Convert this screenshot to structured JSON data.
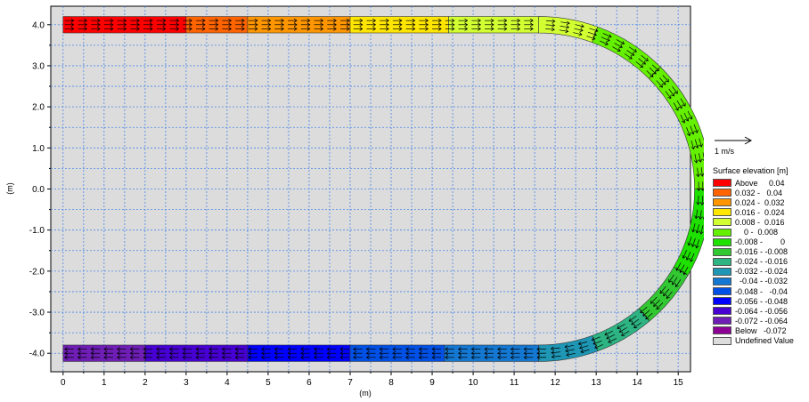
{
  "chart_data": {
    "type": "heatmap",
    "title": "",
    "xlabel": "(m)",
    "ylabel": "(m)",
    "xlim": [
      -0.3,
      15.3
    ],
    "ylim": [
      -4.45,
      4.45
    ],
    "x_ticks": [
      "0",
      "1",
      "2",
      "3",
      "4",
      "5",
      "6",
      "7",
      "8",
      "9",
      "10",
      "11",
      "12",
      "13",
      "14",
      "15"
    ],
    "y_ticks": [
      "4.0",
      "3.0",
      "2.0",
      "1.0",
      "0.0",
      "-1.0",
      "-2.0",
      "-3.0",
      "-4.0"
    ],
    "grid": true,
    "background_color": "#dcdcdc",
    "vector_scale_label": "1 m/s",
    "legend_title": "Surface elevation [m]",
    "legend_placement": "right",
    "legend": [
      {
        "label": "Above     0.04",
        "color": "#ff0000"
      },
      {
        "label": "0.032 -   0.04",
        "color": "#ff6400"
      },
      {
        "label": "0.024 -  0.032",
        "color": "#ff9600"
      },
      {
        "label": "0.016 -  0.024",
        "color": "#ffe600"
      },
      {
        "label": "0.008 -  0.016",
        "color": "#d2ff32"
      },
      {
        "label": "    0 -  0.008",
        "color": "#64f000"
      },
      {
        "label": "-0.008 -        0",
        "color": "#1ee100"
      },
      {
        "label": "-0.016 - -0.008",
        "color": "#32c832"
      },
      {
        "label": "-0.024 - -0.016",
        "color": "#2db482"
      },
      {
        "label": "-0.032 - -0.024",
        "color": "#1e96b4"
      },
      {
        "label": "  -0.04 - -0.032",
        "color": "#1478d2"
      },
      {
        "label": "-0.048 -   -0.04",
        "color": "#0050e6"
      },
      {
        "label": "-0.056 - -0.048",
        "color": "#0000ff"
      },
      {
        "label": "-0.064 - -0.056",
        "color": "#4600d2"
      },
      {
        "label": "-0.072 - -0.064",
        "color": "#6e1eb4"
      },
      {
        "label": "Below   -0.072",
        "color": "#8c0096"
      },
      {
        "label": "Undefined Value",
        "color": "#dcdcdc"
      }
    ],
    "top_channel": {
      "y_range": [
        3.8,
        4.2
      ],
      "cells": [
        {
          "x0": 0.0,
          "x1": 3.0,
          "level": "Above"
        },
        {
          "x0": 3.0,
          "x1": 4.5,
          "level": "0.032 - 0.04"
        },
        {
          "x0": 4.5,
          "x1": 7.0,
          "level": "0.024 - 0.032"
        },
        {
          "x0": 7.0,
          "x1": 9.4,
          "level": "0.016 - 0.024"
        },
        {
          "x0": 9.4,
          "x1": 11.6,
          "level": "0.008 - 0.016"
        }
      ]
    },
    "bend": {
      "center": [
        11.6,
        0.0
      ],
      "inner_radius": 3.8,
      "outer_radius": 4.2,
      "sectors": [
        {
          "angle_from": 90,
          "angle_to": 70,
          "level": "0.008 - 0.016"
        },
        {
          "angle_from": 70,
          "angle_to": 45,
          "level": "0 - 0.008"
        },
        {
          "angle_from": 45,
          "angle_to": 0,
          "level": "0 - 0.008"
        },
        {
          "angle_from": 0,
          "angle_to": -30,
          "level": "-0.008 - 0"
        },
        {
          "angle_from": -30,
          "angle_to": -50,
          "level": "-0.016 - -0.008"
        },
        {
          "angle_from": -50,
          "angle_to": -70,
          "level": "-0.024 - -0.016"
        },
        {
          "angle_from": -70,
          "angle_to": -90,
          "level": "-0.032 - -0.024"
        }
      ]
    },
    "bottom_channel": {
      "y_range": [
        -4.2,
        -3.8
      ],
      "cells": [
        {
          "x0": 0.0,
          "x1": 2.0,
          "level": "-0.072 - -0.064"
        },
        {
          "x0": 2.0,
          "x1": 4.5,
          "level": "-0.064 - -0.056"
        },
        {
          "x0": 4.5,
          "x1": 7.0,
          "level": "-0.056 - -0.048"
        },
        {
          "x0": 7.0,
          "x1": 9.3,
          "level": "-0.048 - -0.04"
        },
        {
          "x0": 9.3,
          "x1": 11.6,
          "level": "-0.04 - -0.032"
        }
      ]
    }
  }
}
